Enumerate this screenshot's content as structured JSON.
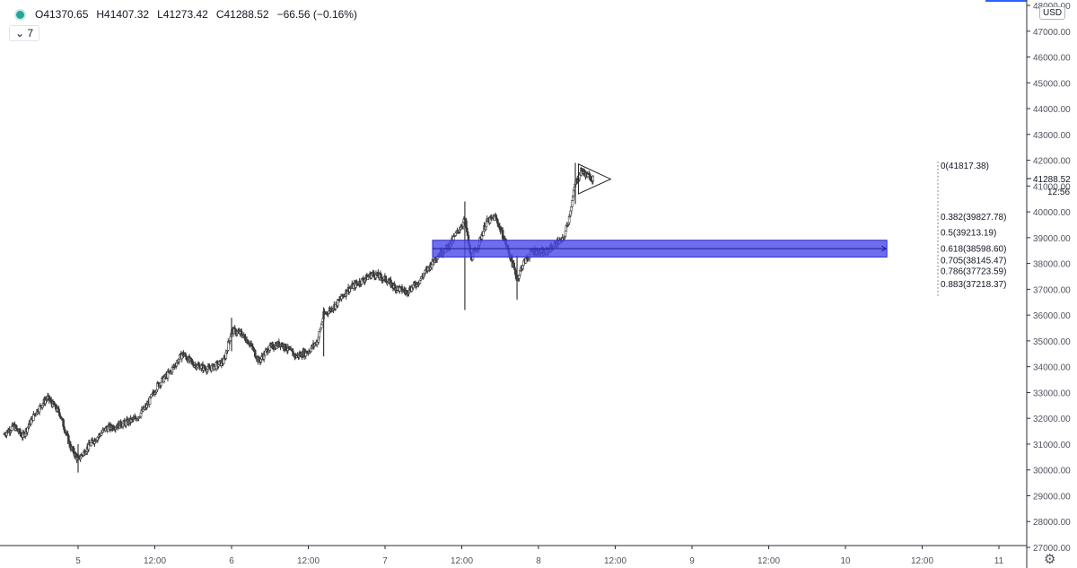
{
  "header": {
    "open": "O41370.65",
    "high": "H41407.32",
    "low": "L41273.42",
    "close": "C41288.52",
    "change": "−66.56 (−0.16%)",
    "interval_chevron": "⌄",
    "interval": "7"
  },
  "currency": "USD",
  "settings_icon": "gear-icon",
  "colors": {
    "candle": "#3a3a3a",
    "zone": "#4a4ae8",
    "fib_line": "#8a8a8a",
    "bg": "#ffffff",
    "axis_text": "#50535e"
  },
  "chart_data": {
    "type": "candlestick",
    "y_ticks": [
      48000,
      47000,
      46000,
      45000,
      44000,
      43000,
      42000,
      41000,
      40000,
      39000,
      38000,
      37000,
      36000,
      35000,
      34000,
      33000,
      32000,
      31000,
      30000,
      29000,
      28000,
      27000
    ],
    "y_tick_labels": [
      "48000.00",
      "47000.00",
      "46000.00",
      "45000.00",
      "44000.00",
      "43000.00",
      "42000.00",
      "41000.00",
      "40000.00",
      "39000.00",
      "38000.00",
      "37000.00",
      "36000.00",
      "35000.00",
      "34000.00",
      "33000.00",
      "32000.00",
      "31000.00",
      "30000.00",
      "29000.00",
      "28000.00",
      "27000.00"
    ],
    "ylim": [
      26900,
      48100
    ],
    "x_ticks": [
      {
        "label": "5",
        "t": 1.0
      },
      {
        "label": "12:00",
        "t": 1.5
      },
      {
        "label": "6",
        "t": 2.0
      },
      {
        "label": "12:00",
        "t": 2.5
      },
      {
        "label": "7",
        "t": 3.0
      },
      {
        "label": "12:00",
        "t": 3.5
      },
      {
        "label": "8",
        "t": 4.0
      },
      {
        "label": "12:00",
        "t": 4.5
      },
      {
        "label": "9",
        "t": 5.0
      },
      {
        "label": "12:00",
        "t": 5.5
      },
      {
        "label": "10",
        "t": 6.0
      },
      {
        "label": "12:00",
        "t": 6.5
      },
      {
        "label": "11",
        "t": 7.0
      }
    ],
    "price_path": [
      [
        0.52,
        31400
      ],
      [
        0.58,
        31700
      ],
      [
        0.64,
        31300
      ],
      [
        0.72,
        32200
      ],
      [
        0.8,
        32800
      ],
      [
        0.88,
        32200
      ],
      [
        0.95,
        30900
      ],
      [
        1.0,
        30400
      ],
      [
        1.08,
        31000
      ],
      [
        1.18,
        31600
      ],
      [
        1.3,
        31800
      ],
      [
        1.38,
        32000
      ],
      [
        1.45,
        32500
      ],
      [
        1.52,
        33300
      ],
      [
        1.6,
        33800
      ],
      [
        1.68,
        34500
      ],
      [
        1.75,
        34100
      ],
      [
        1.85,
        33900
      ],
      [
        1.95,
        34200
      ],
      [
        2.0,
        35400
      ],
      [
        2.06,
        35300
      ],
      [
        2.12,
        34900
      ],
      [
        2.18,
        34200
      ],
      [
        2.24,
        34700
      ],
      [
        2.32,
        34900
      ],
      [
        2.42,
        34400
      ],
      [
        2.5,
        34600
      ],
      [
        2.56,
        35000
      ],
      [
        2.6,
        36000
      ],
      [
        2.68,
        36400
      ],
      [
        2.76,
        37000
      ],
      [
        2.84,
        37300
      ],
      [
        2.92,
        37600
      ],
      [
        3.0,
        37400
      ],
      [
        3.06,
        37100
      ],
      [
        3.14,
        36900
      ],
      [
        3.22,
        37300
      ],
      [
        3.28,
        37800
      ],
      [
        3.34,
        38300
      ],
      [
        3.42,
        38700
      ],
      [
        3.48,
        39300
      ],
      [
        3.52,
        39700
      ],
      [
        3.56,
        38200
      ],
      [
        3.6,
        38600
      ],
      [
        3.66,
        39600
      ],
      [
        3.72,
        39800
      ],
      [
        3.78,
        38900
      ],
      [
        3.82,
        38200
      ],
      [
        3.86,
        37400
      ],
      [
        3.9,
        38000
      ],
      [
        3.96,
        38500
      ],
      [
        4.04,
        38400
      ],
      [
        4.12,
        38800
      ],
      [
        4.16,
        38900
      ],
      [
        4.2,
        39800
      ],
      [
        4.24,
        41100
      ],
      [
        4.28,
        41600
      ],
      [
        4.32,
        41400
      ],
      [
        4.36,
        41300
      ]
    ],
    "wicks": [
      {
        "t": 1.0,
        "low": 29900,
        "high": 31000
      },
      {
        "t": 2.0,
        "low": 34600,
        "high": 35900
      },
      {
        "t": 2.6,
        "low": 34400,
        "high": 36300
      },
      {
        "t": 3.52,
        "low": 36200,
        "high": 40400
      },
      {
        "t": 3.86,
        "low": 36600,
        "high": 38300
      },
      {
        "t": 4.24,
        "low": 40300,
        "high": 41900
      }
    ],
    "zone": {
      "t_start": 3.31,
      "t_end": 6.27,
      "top": 38900,
      "bottom": 38250
    },
    "triangle": {
      "t_left": 4.26,
      "t_right": 4.47,
      "top": 41850,
      "bottom": 40700,
      "apex": 41270
    },
    "fib_levels": [
      {
        "label": "0(41817.38)",
        "level": 0,
        "price": 41817.38
      },
      {
        "label": "0.382(39827.78)",
        "level": 0.382,
        "price": 39827.78
      },
      {
        "label": "0.5(39213.19)",
        "level": 0.5,
        "price": 39213.19
      },
      {
        "label": "0.618(38598.60)",
        "level": 0.618,
        "price": 38598.6
      },
      {
        "label": "0.705(38145.47)",
        "level": 0.705,
        "price": 38145.47
      },
      {
        "label": "0.786(37723.59)",
        "level": 0.786,
        "price": 37723.59
      },
      {
        "label": "0.883(37218.37)",
        "level": 0.883,
        "price": 37218.37
      }
    ],
    "last_price": {
      "label": "41288.52",
      "value": 41288.52,
      "countdown": "12:56"
    }
  }
}
